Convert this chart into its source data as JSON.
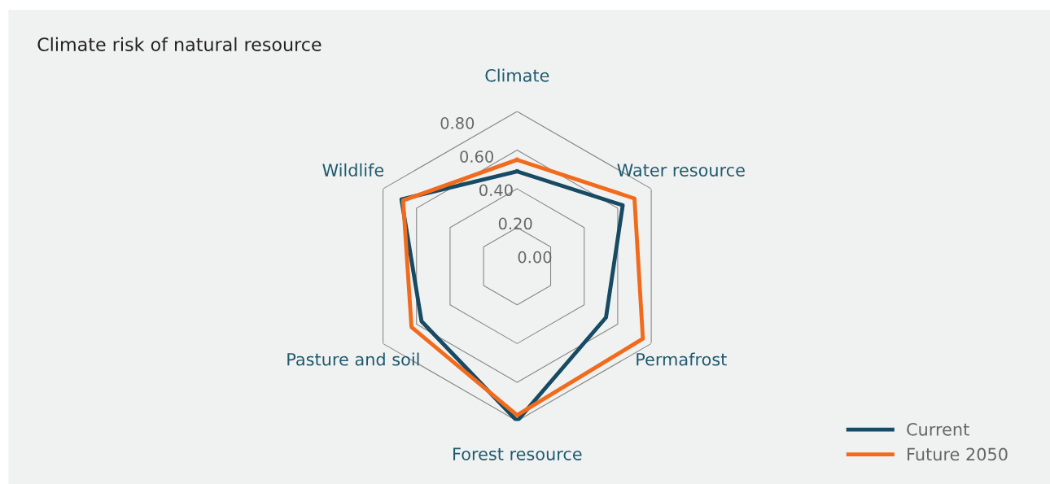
{
  "chart_data": {
    "type": "radar",
    "title": "Climate risk of natural resource",
    "categories": [
      "Climate",
      "Water resource",
      "Permafrost",
      "Forest resource",
      "Pasture and soil",
      "Wildlife"
    ],
    "series": [
      {
        "name": "Current",
        "color": "#174a63",
        "values": [
          0.49,
          0.63,
          0.53,
          0.8,
          0.57,
          0.69
        ]
      },
      {
        "name": "Future 2050",
        "color": "#f26b1d",
        "values": [
          0.55,
          0.7,
          0.75,
          0.77,
          0.63,
          0.68
        ]
      }
    ],
    "ylim": [
      0,
      0.8
    ],
    "yticks": [
      {
        "value": 0,
        "label": "0.00"
      },
      {
        "value": 0.2,
        "label": "0.20"
      },
      {
        "value": 0.4,
        "label": "0.40"
      },
      {
        "value": 0.6,
        "label": "0.60"
      },
      {
        "value": 0.8,
        "label": "0.80"
      }
    ],
    "grid": true,
    "legend": "bottom right",
    "marker": "none",
    "line_style": "solid"
  }
}
